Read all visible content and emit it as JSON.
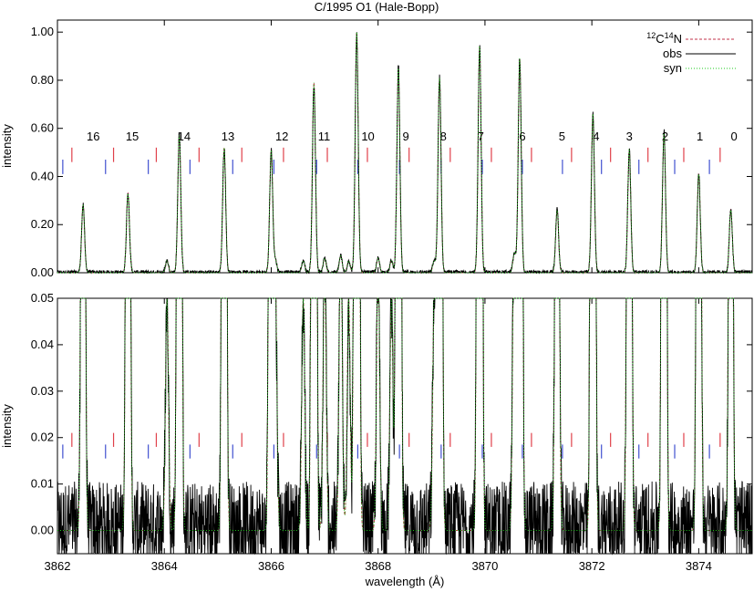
{
  "figure": {
    "title": "C/1995 O1 (Hale-Bopp)",
    "xlabel": "wavelength (Å)",
    "legend": {
      "cn_label_sup1": "12",
      "cn_label_c": "C",
      "cn_label_sup2": "14",
      "cn_label_n": "N"
    }
  },
  "chart_data": [
    {
      "type": "line",
      "panel": "top",
      "title": "C/1995 O1 (Hale-Bopp)",
      "xlabel": "",
      "ylabel": "intensity",
      "xlim": [
        3862,
        3875
      ],
      "ylim": [
        0.0,
        1.05
      ],
      "xticks": [
        3862,
        3864,
        3866,
        3868,
        3870,
        3872,
        3874
      ],
      "xtick_labels": [],
      "yticks": [
        0.0,
        0.2,
        0.4,
        0.6,
        0.8,
        1.0
      ],
      "ytick_labels": [
        "0.00",
        "0.20",
        "0.40",
        "0.60",
        "0.80",
        "1.00"
      ],
      "legend_position": "top-right",
      "grid": false,
      "series": [
        {
          "name": "12C14N",
          "color": "#c0304a",
          "style": "dashed"
        },
        {
          "name": "obs",
          "color": "#000000",
          "style": "solid"
        },
        {
          "name": "syn",
          "color": "#1ec81e",
          "style": "dotted"
        }
      ],
      "peaks_x": [
        3862.48,
        3863.32,
        3864.28,
        3865.12,
        3866.0,
        3866.8,
        3867.6,
        3868.38,
        3869.15,
        3869.9,
        3870.65,
        3871.35,
        3872.02,
        3872.7,
        3873.35,
        3874.0,
        3874.6
      ],
      "peaks_y": [
        0.28,
        0.33,
        0.57,
        0.52,
        0.51,
        0.79,
        1.0,
        0.85,
        0.81,
        0.94,
        0.89,
        0.26,
        0.66,
        0.51,
        0.58,
        0.41,
        0.26
      ],
      "secondary_peaks_x": [
        3864.05,
        3866.08,
        3866.6,
        3867.0,
        3867.3,
        3867.45,
        3868.0,
        3868.25,
        3869.05,
        3870.55
      ],
      "secondary_peaks_y": [
        0.05,
        0.05,
        0.05,
        0.06,
        0.07,
        0.05,
        0.06,
        0.05,
        0.05,
        0.08
      ],
      "annotations": {
        "labels": [
          "16",
          "15",
          "14",
          "13",
          "12",
          "11",
          "10",
          "9",
          "8",
          "7",
          "6",
          "5",
          "4",
          "3",
          "2",
          "1",
          "0"
        ],
        "label_x": [
          3862.67,
          3863.4,
          3864.37,
          3865.19,
          3866.2,
          3866.99,
          3867.81,
          3868.52,
          3869.22,
          3869.92,
          3870.7,
          3871.44,
          3872.08,
          3872.7,
          3873.37,
          3874.02,
          3874.66
        ],
        "red_ticks_x": [
          3862.27,
          3863.05,
          3863.85,
          3864.65,
          3865.45,
          3866.23,
          3867.05,
          3867.8,
          3868.58,
          3869.35,
          3870.12,
          3870.87,
          3871.62,
          3872.35,
          3873.05,
          3873.72,
          3874.4
        ],
        "blue_ticks_x": [
          3862.1,
          3862.9,
          3863.7,
          3864.48,
          3865.28,
          3866.05,
          3866.85,
          3867.62,
          3868.4,
          3869.18,
          3869.95,
          3870.7,
          3871.45,
          3872.18,
          3872.88,
          3873.55,
          3874.2
        ],
        "red_tick_y": [
          0.46,
          0.52
        ],
        "blue_tick_y": [
          0.41,
          0.47
        ]
      }
    },
    {
      "type": "line",
      "panel": "bottom",
      "title": "",
      "xlabel": "wavelength (Å)",
      "ylabel": "intensity",
      "xlim": [
        3862,
        3875
      ],
      "ylim": [
        -0.005,
        0.05
      ],
      "xticks": [
        3862,
        3864,
        3866,
        3868,
        3870,
        3872,
        3874
      ],
      "xtick_labels": [
        "3862",
        "3864",
        "3866",
        "3868",
        "3870",
        "3872",
        "3874"
      ],
      "yticks": [
        0.0,
        0.01,
        0.02,
        0.03,
        0.04,
        0.05
      ],
      "ytick_labels": [
        "0.00",
        "0.01",
        "0.02",
        "0.03",
        "0.04",
        "0.05"
      ],
      "grid": false,
      "series": [
        {
          "name": "12C14N",
          "color": "#c0304a",
          "style": "dashed"
        },
        {
          "name": "obs",
          "color": "#000000",
          "style": "solid"
        },
        {
          "name": "syn",
          "color": "#1ec81e",
          "style": "dotted"
        }
      ],
      "noise_level": 0.012,
      "annotations": {
        "red_tick_y": [
          0.018,
          0.021
        ],
        "blue_tick_y": [
          0.0155,
          0.0185
        ]
      }
    }
  ]
}
